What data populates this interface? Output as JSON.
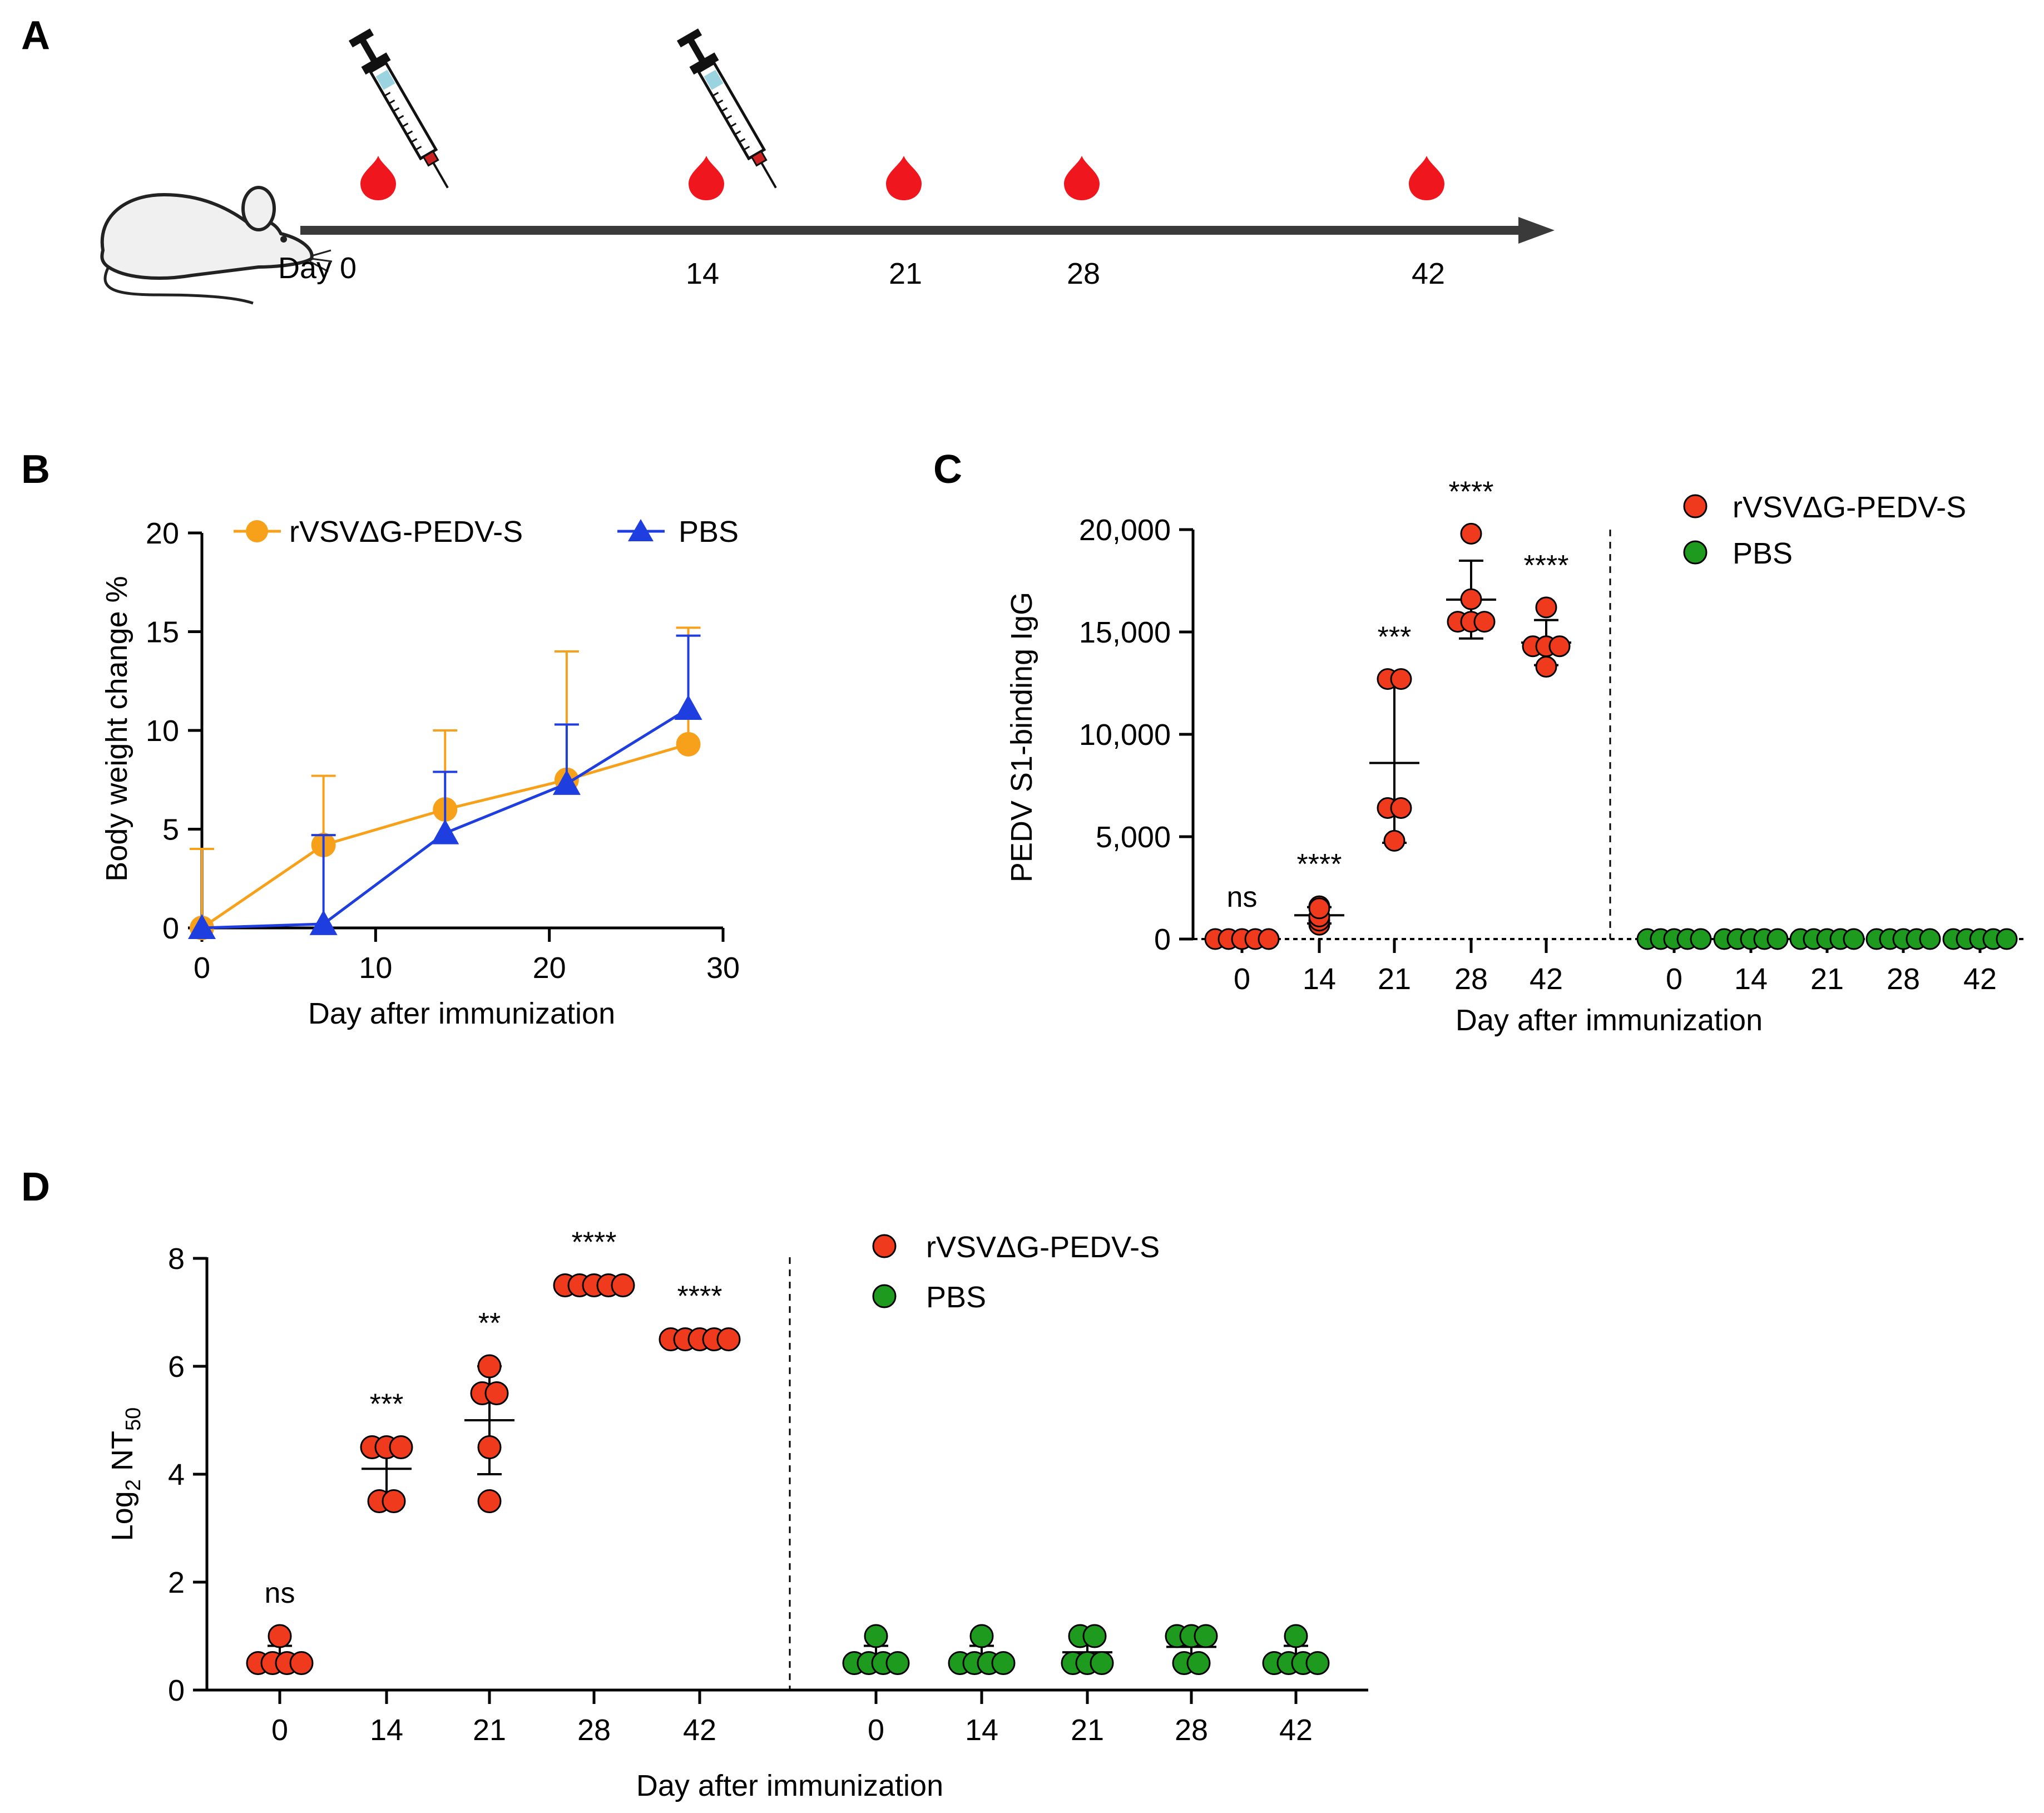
{
  "colors": {
    "treatment_orange": "#F7A11A",
    "control_blue": "#1F3EE0",
    "treatment_red": "#F03A1E",
    "control_green": "#1E9A1E",
    "blood_drop": "#F0161E",
    "arrow": "#3a3a3a"
  },
  "panel_a": {
    "label": "A",
    "first_day_prefix": "Day",
    "timeline": [
      {
        "day": "0",
        "blood_draw": true,
        "injection": true
      },
      {
        "day": "14",
        "blood_draw": true,
        "injection": true
      },
      {
        "day": "21",
        "blood_draw": true,
        "injection": false
      },
      {
        "day": "28",
        "blood_draw": true,
        "injection": false
      },
      {
        "day": "42",
        "blood_draw": true,
        "injection": false
      }
    ],
    "icons": [
      "mouse-icon",
      "syringe-icon",
      "blood-drop-icon"
    ]
  },
  "chart_data": [
    {
      "panel": "B",
      "type": "line",
      "xlabel": "Day after immunization",
      "ylabel": "Body weight change %",
      "xlim": [
        0,
        30
      ],
      "ylim": [
        0,
        20
      ],
      "xticks": [
        0,
        10,
        20,
        30
      ],
      "yticks": [
        0,
        5,
        10,
        15,
        20
      ],
      "legend": "top",
      "series": [
        {
          "name": "rVSVΔG-PEDV-S",
          "marker": "circle",
          "color": "#F7A11A",
          "x": [
            0,
            7,
            14,
            21,
            28
          ],
          "y": [
            0,
            4.2,
            6.0,
            7.5,
            9.3
          ],
          "err": [
            4.0,
            3.5,
            4.0,
            6.5,
            5.9
          ]
        },
        {
          "name": "PBS",
          "marker": "triangle",
          "color": "#1F3EE0",
          "x": [
            0,
            7,
            14,
            21,
            28
          ],
          "y": [
            0,
            0.2,
            4.8,
            7.3,
            11.1
          ],
          "err": [
            0,
            4.5,
            3.1,
            3.0,
            3.7
          ]
        }
      ]
    },
    {
      "panel": "C",
      "type": "scatter",
      "xlabel": "Day after immunization",
      "ylabel": "PEDV S1-binding IgG",
      "ylim": [
        0,
        20000
      ],
      "yticks": [
        0,
        5000,
        10000,
        15000,
        20000
      ],
      "ytick_labels": [
        "0",
        "5,000",
        "10,000",
        "15,000",
        "20,000"
      ],
      "legend": "top-right",
      "groups": [
        {
          "name": "rVSVΔG-PEDV-S",
          "color": "#F03A1E",
          "days": [
            "0",
            "14",
            "21",
            "28",
            "42"
          ],
          "points": [
            [
              0,
              0,
              0,
              0,
              0
            ],
            [
              700,
              900,
              1100,
              1600,
              1500
            ],
            [
              12700,
              12700,
              6400,
              6400,
              4800
            ],
            [
              19800,
              16600,
              15500,
              15500,
              15500
            ],
            [
              16200,
              14300,
              14300,
              14300,
              13300
            ]
          ],
          "mean": [
            0,
            1160,
            8600,
            16580,
            14480
          ],
          "sd": [
            0,
            400,
            3900,
            1900,
            1100
          ],
          "significance": [
            "ns",
            "****",
            "***",
            "****",
            "****"
          ]
        },
        {
          "name": "PBS",
          "color": "#1E9A1E",
          "days": [
            "0",
            "14",
            "21",
            "28",
            "42"
          ],
          "points": [
            [
              0,
              0,
              0,
              0,
              0
            ],
            [
              0,
              0,
              0,
              0,
              0
            ],
            [
              0,
              0,
              0,
              0,
              0
            ],
            [
              0,
              0,
              0,
              0,
              0
            ],
            [
              0,
              0,
              0,
              0,
              0
            ]
          ],
          "mean": [
            0,
            0,
            0,
            0,
            0
          ],
          "sd": [
            0,
            0,
            0,
            0,
            0
          ]
        }
      ]
    },
    {
      "panel": "D",
      "type": "scatter",
      "xlabel": "Day after immunization",
      "ylabel": "Log",
      "ylabel_sub1": "2",
      "ylabel_mid": " NT",
      "ylabel_sub2": "50",
      "ylim": [
        0,
        8
      ],
      "yticks": [
        0,
        2,
        4,
        6,
        8
      ],
      "legend": "top-right",
      "groups": [
        {
          "name": "rVSVΔG-PEDV-S",
          "color": "#F03A1E",
          "days": [
            "0",
            "14",
            "21",
            "28",
            "42"
          ],
          "points": [
            [
              1,
              0.5,
              0.5,
              0.5,
              0.5
            ],
            [
              4.5,
              4.5,
              4.5,
              3.5,
              3.5
            ],
            [
              6,
              5.5,
              5.5,
              4.5,
              3.5
            ],
            [
              7.5,
              7.5,
              7.5,
              7.5,
              7.5
            ],
            [
              6.5,
              6.5,
              6.5,
              6.5,
              6.5
            ]
          ],
          "mean": [
            0.6,
            4.1,
            5.0,
            7.5,
            6.5
          ],
          "sd": [
            0.22,
            0.55,
            1.0,
            0,
            0
          ],
          "significance": [
            "ns",
            "***",
            "**",
            "****",
            "****"
          ]
        },
        {
          "name": "PBS",
          "color": "#1E9A1E",
          "days": [
            "0",
            "14",
            "21",
            "28",
            "42"
          ],
          "points": [
            [
              1,
              0.5,
              0.5,
              0.5,
              0.5
            ],
            [
              1,
              0.5,
              0.5,
              0.5,
              0.5
            ],
            [
              1,
              1,
              0.5,
              0.5,
              0.5
            ],
            [
              1,
              1,
              1,
              0.5,
              0.5
            ],
            [
              1,
              0.5,
              0.5,
              0.5,
              0.5
            ]
          ],
          "mean": [
            0.6,
            0.6,
            0.7,
            0.8,
            0.6
          ],
          "sd": [
            0.22,
            0.22,
            0.27,
            0.27,
            0.22
          ]
        }
      ]
    }
  ]
}
